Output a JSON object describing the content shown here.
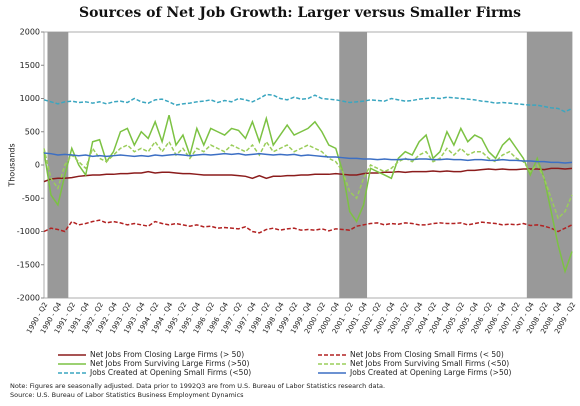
{
  "chart_data": {
    "type": "line",
    "title": "Sources of Net Job Growth: Larger versus Smaller Firms",
    "y_label": "Thousands",
    "notes": [
      "Note: Figures are seasonally adjusted. Data prior to 1992Q3 are from U.S. Bureau of Labor Statistics research data.",
      "Source: U.S. Bureau of Labor Statistics Business Employment Dynamics"
    ],
    "categories": [
      "1990 - Q2",
      null,
      "1990 - Q4",
      null,
      "1991 - Q2",
      null,
      "1991 - Q4",
      null,
      "1992 - Q2",
      null,
      "1992 - Q4",
      null,
      "1993 - Q2",
      null,
      "1993 - Q4",
      null,
      "1994 - Q2",
      null,
      "1994 - Q4",
      null,
      "1995 - Q2",
      null,
      "1995 - Q4",
      null,
      "1996 - Q2",
      null,
      "1996 - Q4",
      null,
      "1997 - Q2",
      null,
      "1997 - Q4",
      null,
      "1998 - Q2",
      null,
      "1998 - Q4",
      null,
      "1999 - Q2",
      null,
      "1999 - Q4",
      null,
      "2000 - Q2",
      null,
      "2000 - Q4",
      null,
      "2001 - Q2",
      null,
      "2001 - Q4",
      null,
      "2002 - Q2",
      null,
      "2002 - Q4",
      null,
      "2003 - Q2",
      null,
      "2003 - Q4",
      null,
      "2004 - Q2",
      null,
      "2004 - Q4",
      null,
      "2005 - Q2",
      null,
      "2005 - Q4",
      null,
      "2006 - Q2",
      null,
      "2006 - Q4",
      null,
      "2007 - Q2",
      null,
      "2007 - Q4",
      null,
      "2008 - Q2",
      null,
      "2008 - Q4",
      null,
      "2009 - Q2"
    ],
    "recessions": [
      {
        "start": 1,
        "end": 3
      },
      {
        "start": 43,
        "end": 46
      },
      {
        "start": 70,
        "end": 76
      }
    ],
    "ylim": [
      -2000,
      2000
    ],
    "yticks": [
      -2000,
      -1500,
      -1000,
      -500,
      0,
      500,
      1000,
      1500,
      2000
    ],
    "grid": false,
    "series": [
      {
        "name": "Net Jobs From Closing Large Firms (> 50)",
        "color": "#8b1c1c",
        "dashed": false,
        "values": [
          -250,
          -210,
          -200,
          -200,
          -190,
          -170,
          -160,
          -150,
          -150,
          -140,
          -140,
          -130,
          -130,
          -120,
          -120,
          -100,
          -120,
          -110,
          -110,
          -120,
          -130,
          -130,
          -140,
          -150,
          -150,
          -150,
          -150,
          -150,
          -160,
          -170,
          -200,
          -160,
          -200,
          -170,
          -170,
          -160,
          -160,
          -150,
          -150,
          -140,
          -140,
          -140,
          -130,
          -140,
          -150,
          -150,
          -130,
          -120,
          -120,
          -110,
          -110,
          -100,
          -110,
          -100,
          -100,
          -100,
          -90,
          -100,
          -90,
          -100,
          -100,
          -80,
          -80,
          -70,
          -60,
          -70,
          -60,
          -70,
          -70,
          -60,
          -60,
          -60,
          -70,
          -50,
          -50,
          -60,
          -50
        ]
      },
      {
        "name": "Net Jobs From Closing Small Firms (< 50)",
        "color": "#b22222",
        "dashed": true,
        "values": [
          -1000,
          -950,
          -970,
          -1000,
          -850,
          -900,
          -880,
          -850,
          -830,
          -870,
          -850,
          -870,
          -900,
          -880,
          -900,
          -920,
          -850,
          -880,
          -900,
          -880,
          -900,
          -920,
          -900,
          -930,
          -920,
          -950,
          -940,
          -950,
          -960,
          -930,
          -1000,
          -1020,
          -970,
          -950,
          -980,
          -960,
          -950,
          -980,
          -970,
          -980,
          -960,
          -990,
          -960,
          -970,
          -980,
          -920,
          -900,
          -880,
          -870,
          -900,
          -880,
          -890,
          -870,
          -880,
          -900,
          -900,
          -880,
          -870,
          -880,
          -880,
          -870,
          -900,
          -880,
          -860,
          -870,
          -880,
          -900,
          -890,
          -900,
          -880,
          -910,
          -900,
          -920,
          -950,
          -1000,
          -950,
          -900
        ]
      },
      {
        "name": "Net Jobs From Surviving Large Firms (>50)",
        "color": "#7cc243",
        "dashed": false,
        "values": [
          200,
          -450,
          -600,
          -150,
          250,
          0,
          -150,
          350,
          380,
          50,
          200,
          500,
          550,
          300,
          500,
          400,
          650,
          350,
          750,
          300,
          450,
          150,
          550,
          300,
          550,
          500,
          450,
          550,
          520,
          400,
          650,
          350,
          700,
          300,
          450,
          600,
          450,
          500,
          550,
          650,
          500,
          300,
          250,
          -100,
          -700,
          -850,
          -600,
          -50,
          -100,
          -150,
          -200,
          100,
          200,
          150,
          350,
          450,
          100,
          200,
          500,
          300,
          550,
          350,
          450,
          400,
          200,
          100,
          300,
          400,
          250,
          100,
          -150,
          100,
          -200,
          -700,
          -1200,
          -1600,
          -1300
        ]
      },
      {
        "name": "Net Jobs From Surviving Small Firms (<50)",
        "color": "#9acd5a",
        "dashed": true,
        "values": [
          250,
          -200,
          -350,
          0,
          150,
          50,
          -50,
          250,
          100,
          50,
          150,
          250,
          300,
          200,
          250,
          200,
          350,
          200,
          350,
          150,
          250,
          100,
          250,
          200,
          300,
          250,
          200,
          300,
          250,
          200,
          300,
          150,
          350,
          200,
          250,
          300,
          200,
          250,
          300,
          250,
          200,
          100,
          50,
          -100,
          -400,
          -500,
          -200,
          0,
          -50,
          -100,
          -50,
          50,
          100,
          50,
          150,
          200,
          50,
          100,
          250,
          150,
          250,
          150,
          200,
          200,
          100,
          50,
          150,
          200,
          100,
          50,
          -100,
          0,
          -200,
          -500,
          -800,
          -700,
          -450
        ]
      },
      {
        "name": "Jobs Created at Opening Small Firms (<50)",
        "color": "#3aa6c0",
        "dashed": true,
        "values": [
          980,
          950,
          920,
          950,
          960,
          940,
          950,
          930,
          950,
          920,
          950,
          960,
          940,
          1000,
          950,
          930,
          980,
          990,
          950,
          900,
          920,
          930,
          950,
          960,
          980,
          940,
          970,
          950,
          1000,
          980,
          950,
          1000,
          1060,
          1050,
          1000,
          980,
          1020,
          990,
          1000,
          1050,
          1000,
          990,
          980,
          960,
          940,
          950,
          960,
          980,
          970,
          960,
          1000,
          980,
          960,
          970,
          990,
          1000,
          1010,
          1000,
          1020,
          1010,
          1000,
          990,
          980,
          960,
          950,
          930,
          940,
          930,
          920,
          910,
          900,
          900,
          880,
          860,
          850,
          800,
          850
        ]
      },
      {
        "name": "Jobs Created at Opening Large Firms (>50)",
        "color": "#3c6fc4",
        "dashed": false,
        "values": [
          180,
          170,
          150,
          160,
          150,
          140,
          150,
          130,
          140,
          130,
          140,
          150,
          140,
          130,
          140,
          130,
          150,
          140,
          150,
          160,
          150,
          140,
          150,
          160,
          150,
          160,
          170,
          160,
          170,
          150,
          160,
          170,
          160,
          150,
          160,
          150,
          160,
          140,
          150,
          140,
          130,
          120,
          120,
          110,
          100,
          100,
          90,
          90,
          80,
          90,
          80,
          80,
          90,
          80,
          90,
          90,
          80,
          80,
          90,
          80,
          80,
          70,
          80,
          80,
          70,
          70,
          80,
          70,
          70,
          60,
          60,
          50,
          50,
          40,
          40,
          30,
          40
        ]
      }
    ]
  }
}
